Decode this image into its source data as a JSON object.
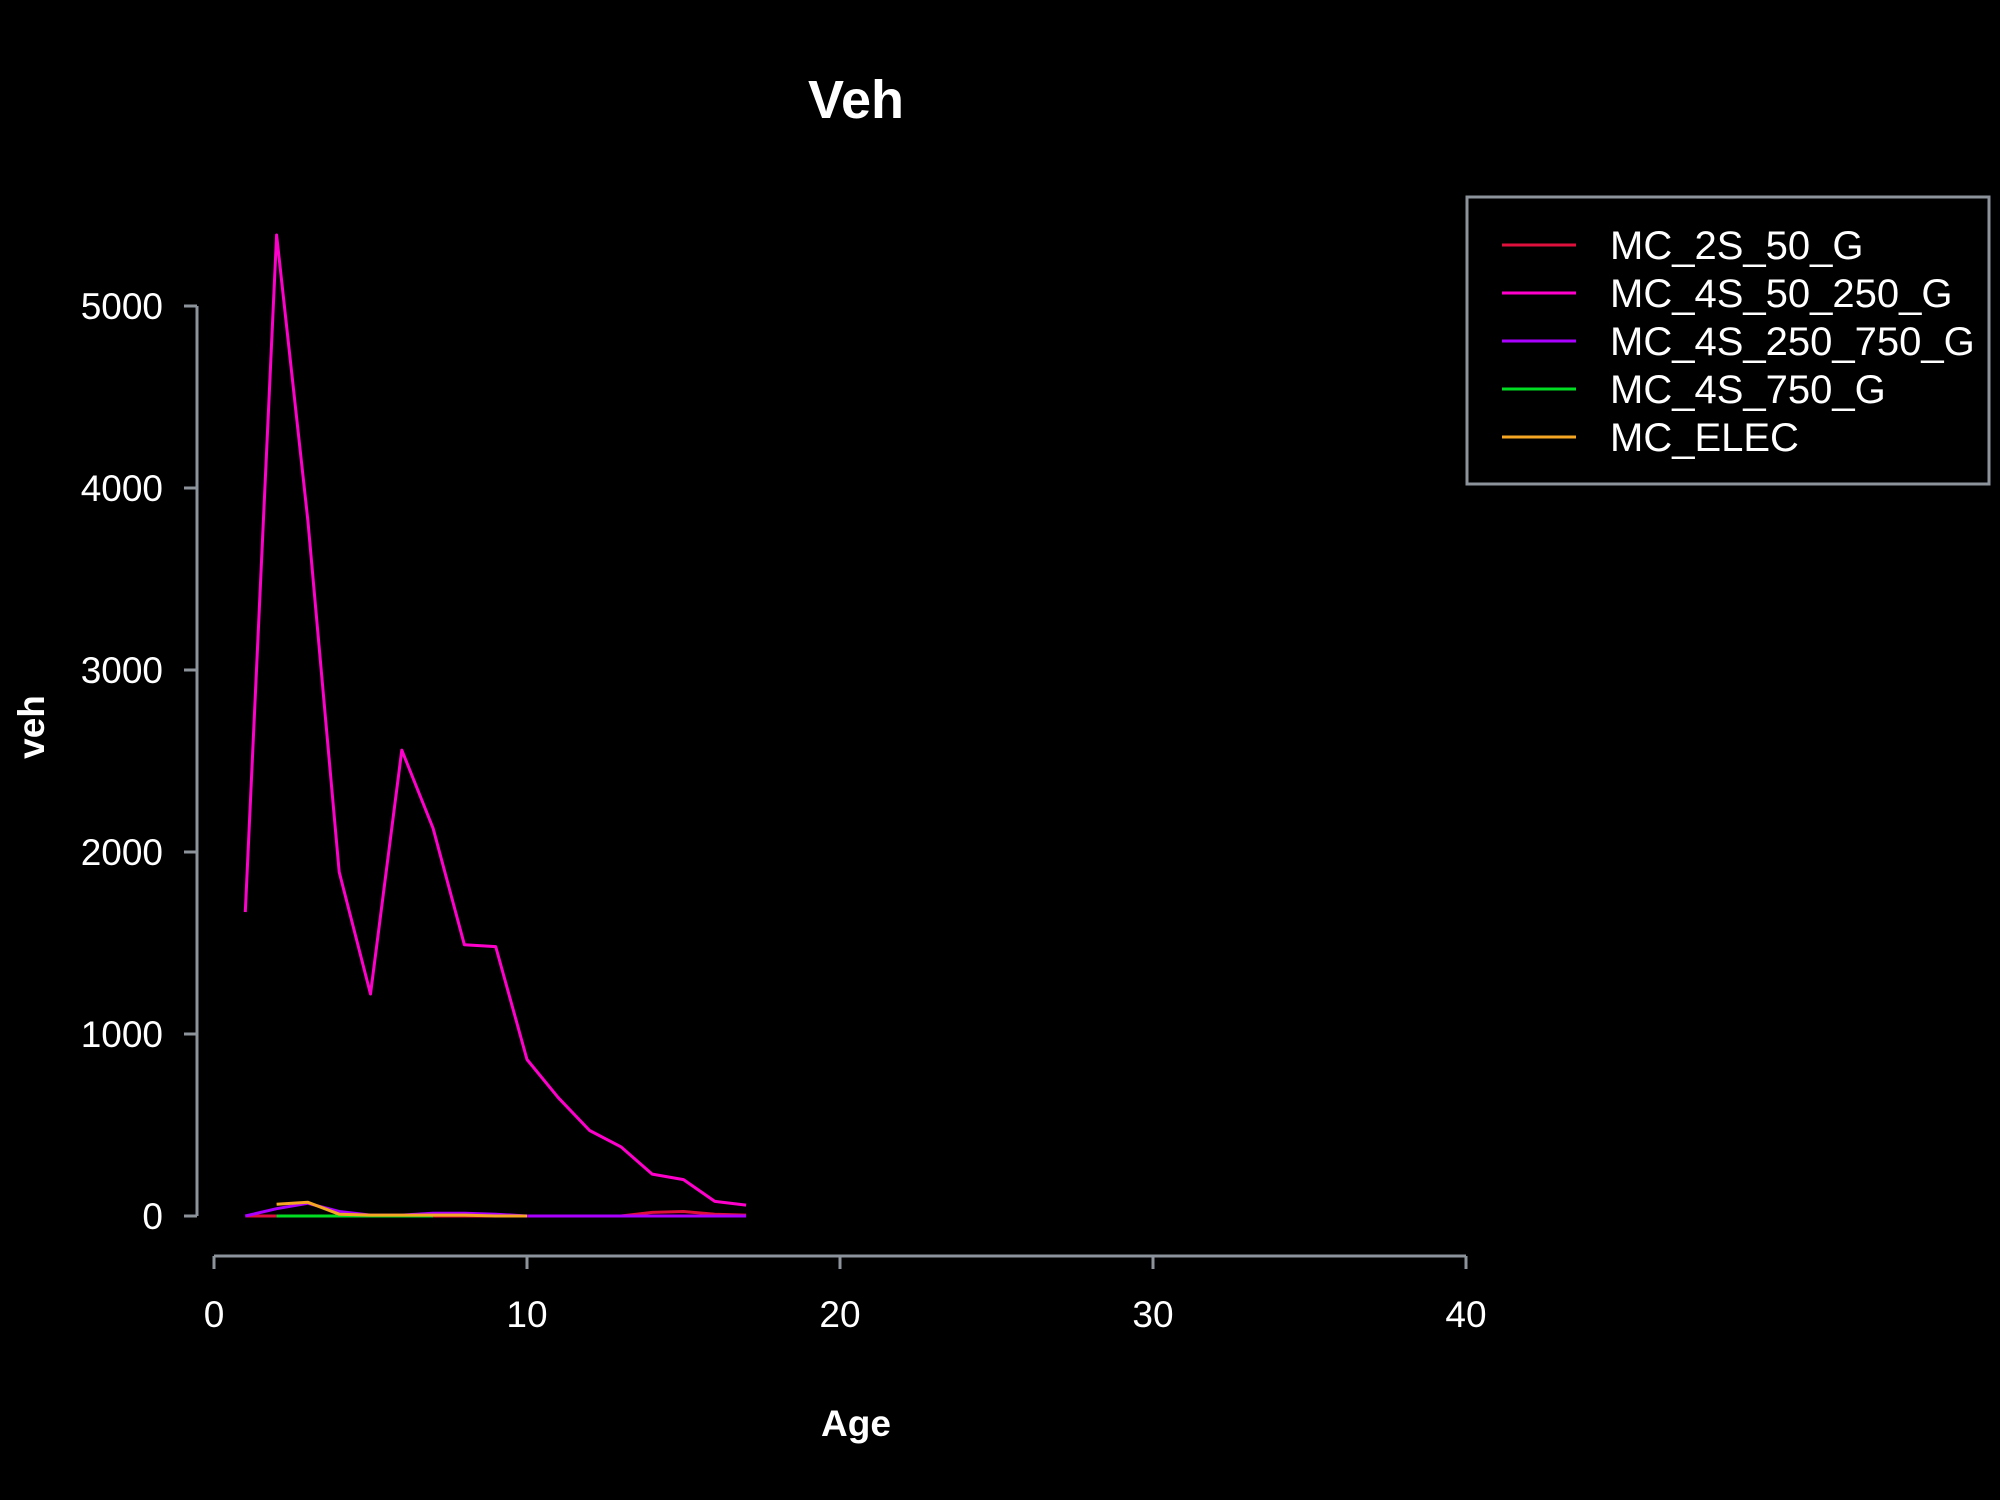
{
  "chart_data": {
    "type": "line",
    "title": "Veh",
    "xlabel": "Age",
    "ylabel": "veh",
    "xlim": [
      0,
      40
    ],
    "ylim": [
      0,
      5000
    ],
    "x_ticks": [
      0,
      10,
      20,
      30,
      40
    ],
    "y_ticks": [
      0,
      1000,
      2000,
      3000,
      4000,
      5000
    ],
    "grid": false,
    "legend_position": "top-right",
    "series": [
      {
        "name": "MC_2S_50_G",
        "color": "#e0103c",
        "x": [
          1,
          2,
          3,
          4,
          5,
          6,
          7,
          8,
          9,
          10,
          11,
          12,
          13,
          14,
          15,
          16,
          17
        ],
        "y": [
          0,
          0,
          0,
          0,
          0,
          0,
          0,
          0,
          0,
          0,
          0,
          0,
          0,
          20,
          25,
          10,
          5
        ]
      },
      {
        "name": "MC_4S_50_250_G",
        "color": "#ff00cc",
        "x": [
          1,
          2,
          3,
          4,
          5,
          6,
          7,
          8,
          9,
          10,
          11,
          12,
          13,
          14,
          15,
          16,
          17
        ],
        "y": [
          1670,
          5390,
          3820,
          1890,
          1220,
          2560,
          2130,
          1490,
          1480,
          860,
          650,
          470,
          380,
          230,
          200,
          80,
          60
        ]
      },
      {
        "name": "MC_4S_250_750_G",
        "color": "#aa00ff",
        "x": [
          1,
          2,
          3,
          4,
          5,
          6,
          7,
          8,
          9,
          10,
          11,
          12,
          13,
          14,
          15,
          16,
          17
        ],
        "y": [
          0,
          40,
          70,
          25,
          5,
          5,
          15,
          15,
          10,
          0,
          0,
          0,
          0,
          0,
          0,
          0,
          0
        ]
      },
      {
        "name": "MC_4S_750_G",
        "color": "#00dd22",
        "x": [
          2,
          3,
          5,
          6,
          7
        ],
        "y": [
          0,
          0,
          0,
          0,
          0
        ]
      },
      {
        "name": "MC_ELEC",
        "color": "#f5a623",
        "x": [
          2,
          3,
          4,
          5,
          6,
          7,
          8,
          9,
          10
        ],
        "y": [
          65,
          75,
          10,
          5,
          5,
          5,
          5,
          0,
          0
        ]
      }
    ]
  }
}
